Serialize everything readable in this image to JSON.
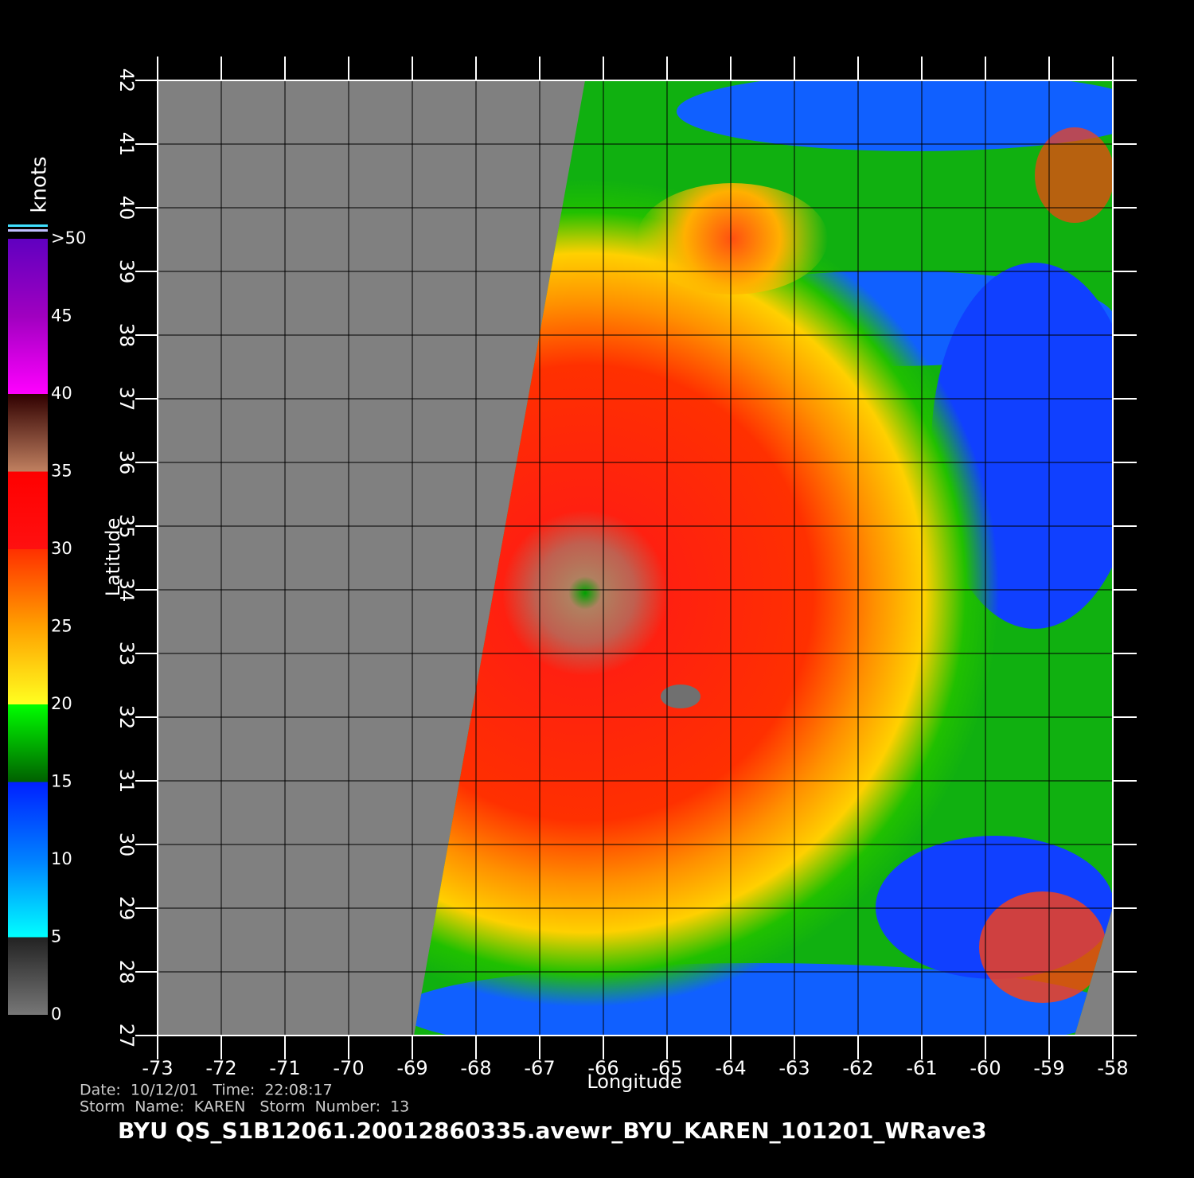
{
  "title": "BYU  QS_S1B12061.20012860335.avewr_BYU_KAREN_101201_WRave3",
  "date_line": "Date:  10/12/01   Time:  22:08:17",
  "storm_line": "Storm  Name:  KAREN   Storm  Number:  13",
  "x_axis": {
    "label": "Longitude",
    "lim": [
      -73,
      -58
    ],
    "ticks": [
      -73,
      -72,
      -71,
      -70,
      -69,
      -68,
      -67,
      -66,
      -65,
      -64,
      -63,
      -62,
      -61,
      -60,
      -59,
      -58
    ]
  },
  "y_axis": {
    "label": "Latitude",
    "lim": [
      27,
      42
    ],
    "ticks": [
      27,
      28,
      29,
      30,
      31,
      32,
      33,
      34,
      35,
      36,
      37,
      38,
      39,
      40,
      41,
      42
    ]
  },
  "colorbar": {
    "label": "knots",
    "lim": [
      0,
      50
    ],
    "ticks": [
      0,
      5,
      10,
      15,
      20,
      25,
      30,
      35,
      40,
      45,
      {
        "value": 50,
        "label": ">50"
      }
    ]
  }
}
